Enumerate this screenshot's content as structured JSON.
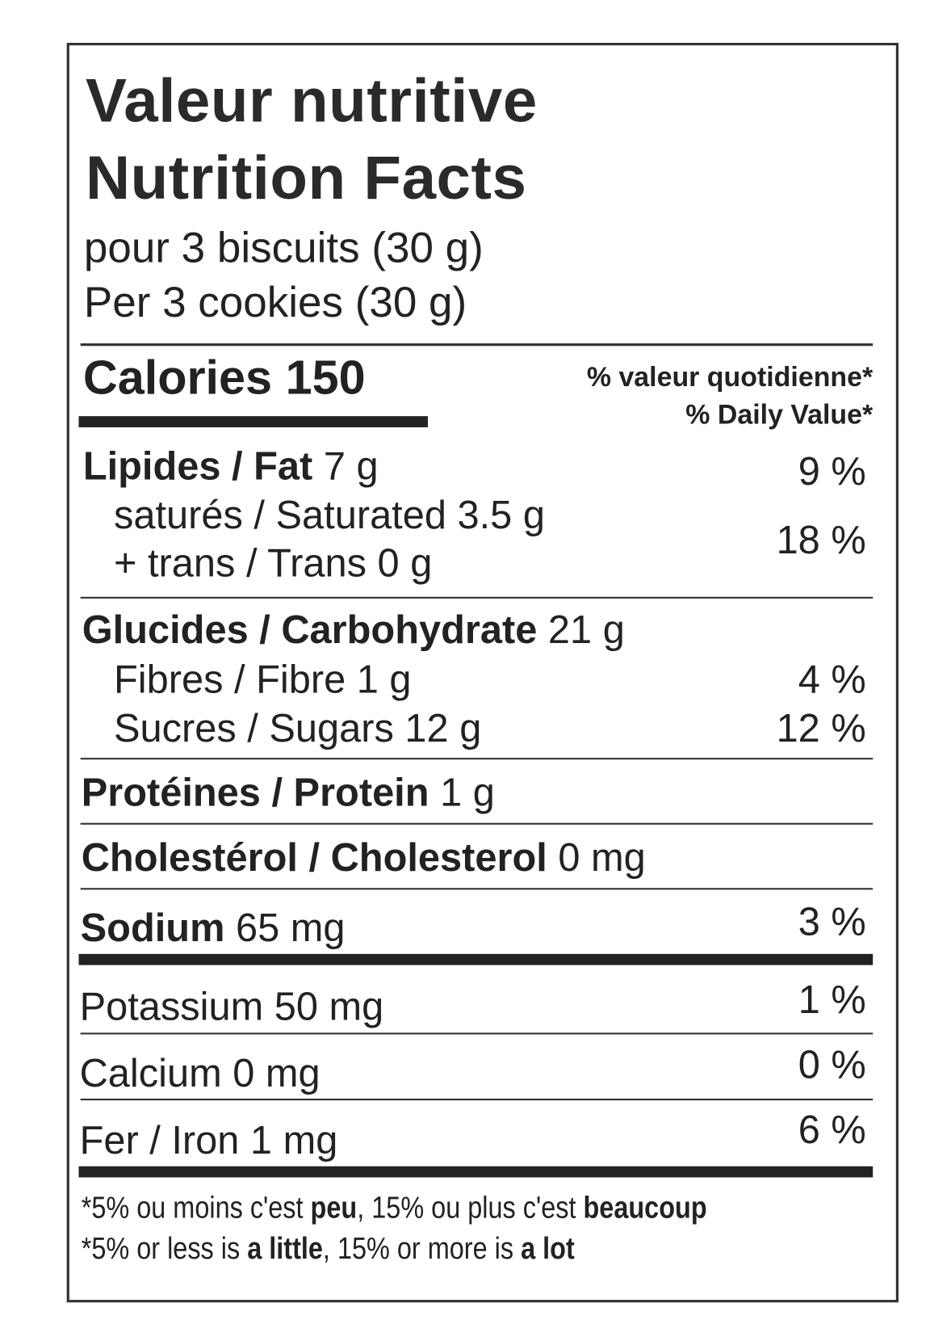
{
  "title_fr": "Valeur nutritive",
  "title_en": "Nutrition Facts",
  "serving_fr": "pour 3 biscuits (30 g)",
  "serving_en": "Per 3 cookies (30 g)",
  "calories_label": "Calories 150",
  "dv_header_fr": "% valeur quotidienne*",
  "dv_header_en": "% Daily Value*",
  "rows": {
    "fat": {
      "label": "Lipides / Fat",
      "amount": "7 g",
      "dv": "9 %"
    },
    "saturated": {
      "label": "saturés / Saturated 3.5 g"
    },
    "trans": {
      "label": "+ trans / Trans 0 g"
    },
    "sat_trans_dv": "18 %",
    "carb": {
      "label": "Glucides / Carbohydrate",
      "amount": "21 g"
    },
    "fibre": {
      "label": "Fibres / Fibre 1 g",
      "dv": "4 %"
    },
    "sugars": {
      "label": "Sucres / Sugars 12 g",
      "dv": "12 %"
    },
    "protein": {
      "label": "Protéines / Protein",
      "amount": "1 g"
    },
    "cholesterol": {
      "label": "Cholestérol / Cholesterol",
      "amount": "0 mg"
    },
    "sodium": {
      "label": "Sodium",
      "amount": "65 mg",
      "dv": "3 %"
    },
    "potassium": {
      "label": "Potassium 50 mg",
      "dv": "1 %"
    },
    "calcium": {
      "label": "Calcium 0 mg",
      "dv": "0 %"
    },
    "iron": {
      "label": "Fer / Iron 1 mg",
      "dv": "6 %"
    }
  },
  "footnote_fr": {
    "a": "*5% ou moins c'est ",
    "b": "peu",
    "c": ", 15% ou plus c'est ",
    "d": "beaucoup"
  },
  "footnote_en": {
    "a": "*5% or less is ",
    "b": "a little",
    "c": ", 15% or more is ",
    "d": "a lot"
  }
}
